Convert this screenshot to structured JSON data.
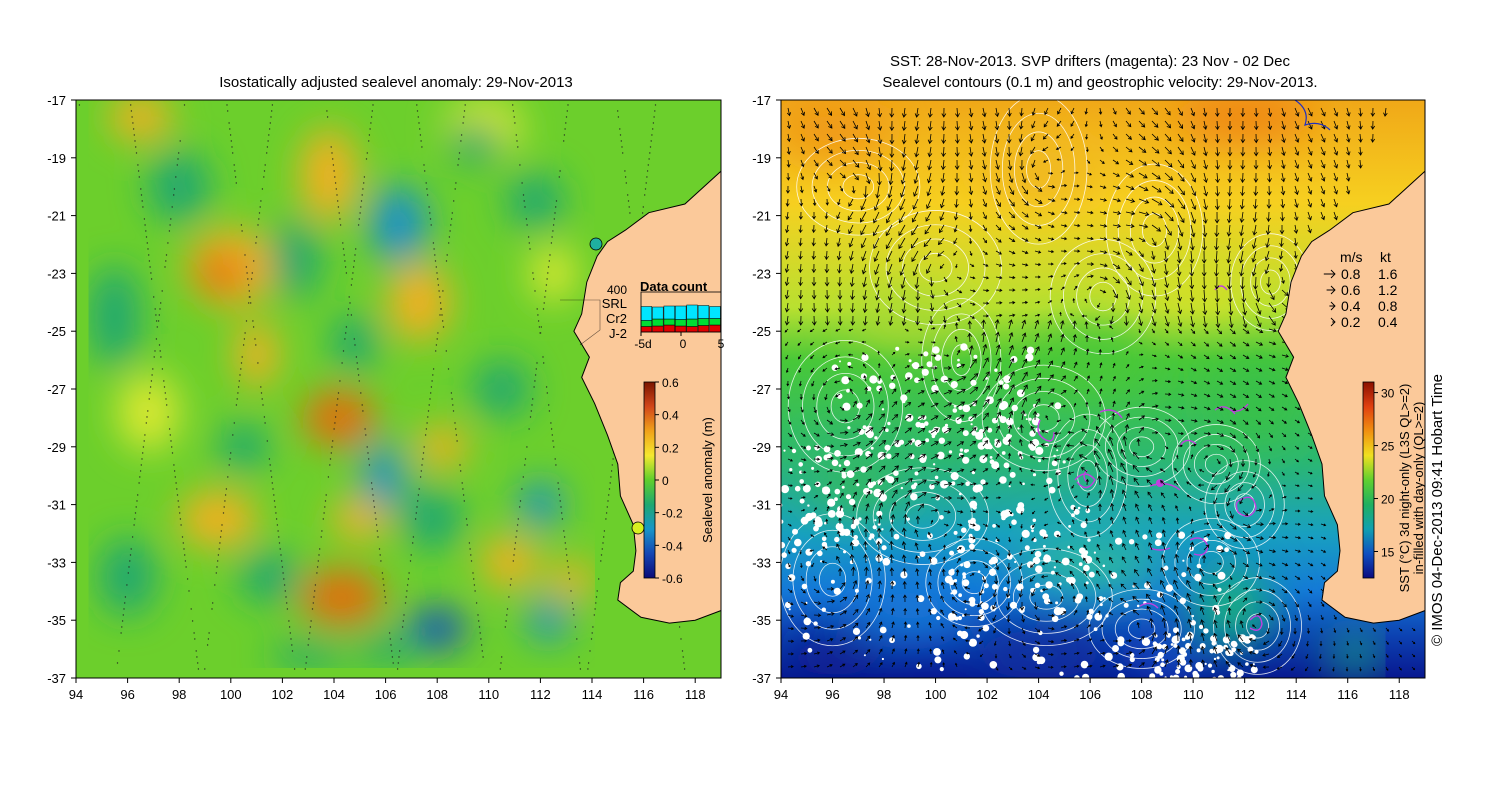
{
  "left_map": {
    "title": "Isostatically adjusted sealevel anomaly: 29-Nov-2013",
    "lat_ticks": [
      "-17",
      "-19",
      "-21",
      "-23",
      "-25",
      "-27",
      "-29",
      "-31",
      "-33",
      "-35",
      "-37"
    ],
    "lon_ticks": [
      "94",
      "96",
      "98",
      "100",
      "102",
      "104",
      "106",
      "108",
      "110",
      "112",
      "114",
      "116",
      "118"
    ],
    "colorbar": {
      "label": "Sealevel anomaly (m)",
      "ticks": [
        "0.6",
        "0.4",
        "0.2",
        "0",
        "-0.2",
        "-0.4",
        "-0.6"
      ],
      "colors": [
        "#7a1500",
        "#d2461a",
        "#f0a21a",
        "#f5e830",
        "#5fcf2c",
        "#1fa870",
        "#1896c8",
        "#1446b4",
        "#0a0a78"
      ]
    },
    "data_count": {
      "title": "Data count",
      "max_label": "400",
      "series": [
        {
          "name": "SRL",
          "color": "#00e5ff",
          "values": [
            140,
            120,
            130,
            135,
            140,
            130,
            120
          ]
        },
        {
          "name": "Cr2",
          "color": "#00dd33",
          "values": [
            60,
            70,
            60,
            65,
            75,
            70,
            65
          ]
        },
        {
          "name": "J-2",
          "color": "#e00000",
          "values": [
            55,
            60,
            70,
            60,
            55,
            65,
            70
          ]
        }
      ],
      "x_ticks": [
        "-5d",
        "0",
        "5"
      ]
    },
    "land_color": "#fbc99a"
  },
  "right_map": {
    "title_line1": "SST: 28-Nov-2013. SVP drifters (magenta): 23 Nov - 02 Dec",
    "title_line2": "Sealevel contours (0.1 m) and geostrophic velocity: 29-Nov-2013.",
    "lat_ticks": [
      "-17",
      "-19",
      "-21",
      "-23",
      "-25",
      "-27",
      "-29",
      "-31",
      "-33",
      "-35",
      "-37"
    ],
    "lon_ticks": [
      "94",
      "96",
      "98",
      "100",
      "102",
      "104",
      "106",
      "108",
      "110",
      "112",
      "114",
      "116",
      "118"
    ],
    "velocity_legend": {
      "header_ms": "m/s",
      "header_kt": "kt",
      "rows": [
        {
          "ms": "0.8",
          "kt": "1.6"
        },
        {
          "ms": "0.6",
          "kt": "1.2"
        },
        {
          "ms": "0.4",
          "kt": "0.8"
        },
        {
          "ms": "0.2",
          "kt": "0.4"
        }
      ]
    },
    "colorbar": {
      "label_line1": "SST (°C) 3d night-only (L3S QL>=2)",
      "label_line2": "in-filled with day-only (QL>=2)",
      "ticks": [
        "30",
        "25",
        "20",
        "15"
      ],
      "colors": [
        "#8a1000",
        "#e04010",
        "#f09010",
        "#f0e020",
        "#60d030",
        "#20b060",
        "#10a0b0",
        "#1050c0",
        "#0a0a80"
      ]
    },
    "land_color": "#fbc99a"
  },
  "credit": "© IMOS 04-Dec-2013 09:41 Hobart Time"
}
